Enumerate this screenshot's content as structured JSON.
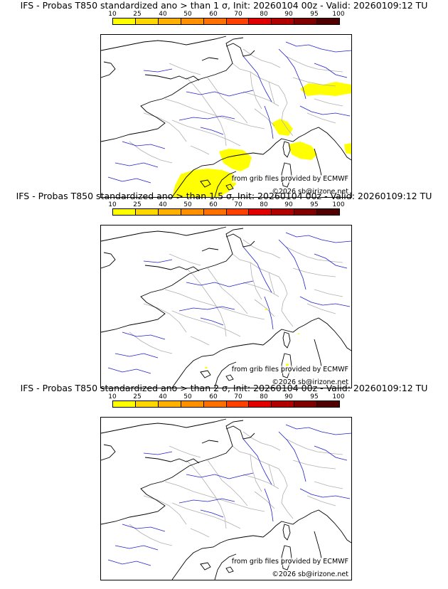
{
  "colors": {
    "scale": [
      "#ffff00",
      "#ffd700",
      "#ffb000",
      "#ff9000",
      "#ff7000",
      "#ff4000",
      "#e00000",
      "#b00000",
      "#800000",
      "#500000"
    ],
    "river": "#2020d0",
    "border": "#b0b0b0",
    "coast": "#000000",
    "prob_fill": "#ffff00"
  },
  "scale_ticks": [
    "10",
    "25",
    "40",
    "50",
    "60",
    "70",
    "80",
    "90",
    "95",
    "100"
  ],
  "credits": {
    "source": "from grib files provided by ECMWF",
    "copyright": "©2026 sb@irizone.net"
  },
  "panels": [
    {
      "title": "IFS - Probas T850  standardized ano > than 1 σ, Init: 20260104 00z - Valid: 20260109:12 TU"
    },
    {
      "title": "IFS - Probas T850  standardized ano > than 1.5 σ, Init: 20260104 00z - Valid: 20260109:12 TU"
    },
    {
      "title": "IFS - Probas T850  standardized ano > than 2 σ, Init: 20260104 00z - Valid: 20260109:12 TU"
    }
  ]
}
